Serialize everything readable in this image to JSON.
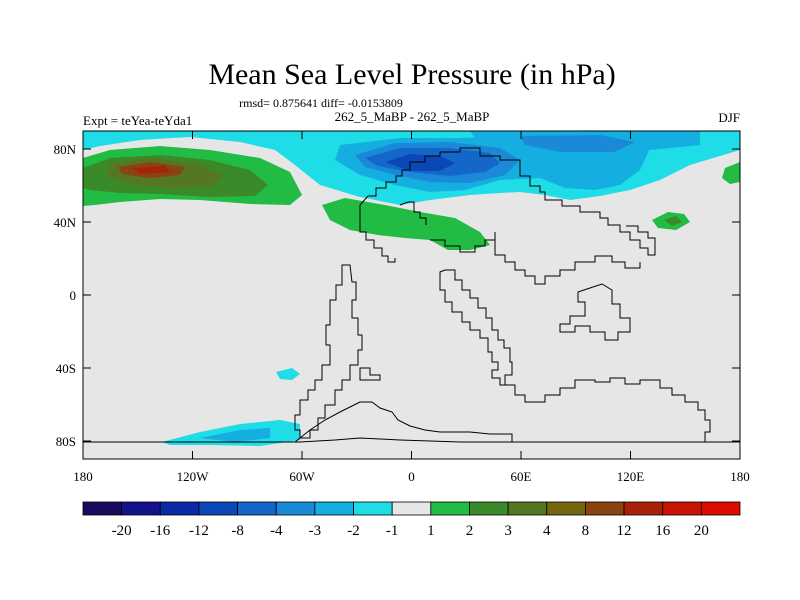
{
  "title": "Mean Sea Level Pressure (in hPa)",
  "stats_label": "rmsd= 0.875641 diff= -0.0153809",
  "left_label": "Expt = teYea-teYda1",
  "center_label": "262_5_MaBP - 262_5_MaBP",
  "right_label": "DJF",
  "y_ticks": [
    "80N",
    "40N",
    "0",
    "40S",
    "80S"
  ],
  "x_ticks": [
    "180",
    "120W",
    "60W",
    "0",
    "60E",
    "120E",
    "180"
  ],
  "colorbar": {
    "labels": [
      "-20",
      "-16",
      "-12",
      "-8",
      "-4",
      "-3",
      "-2",
      "-1",
      "1",
      "2",
      "3",
      "4",
      "8",
      "12",
      "16",
      "20"
    ],
    "colors": [
      "#1a0a5e",
      "#13128a",
      "#0a2aa8",
      "#0a48b8",
      "#1466c8",
      "#1a8ad8",
      "#14aee0",
      "#1edde6",
      "#e6e6e6",
      "#22bb44",
      "#3a8a2a",
      "#557722",
      "#776611",
      "#8a4410",
      "#a8220a",
      "#c81400",
      "#dd0a00"
    ]
  },
  "map": {
    "background_color": "#e6e6e6",
    "coastline_color": "#000000"
  }
}
